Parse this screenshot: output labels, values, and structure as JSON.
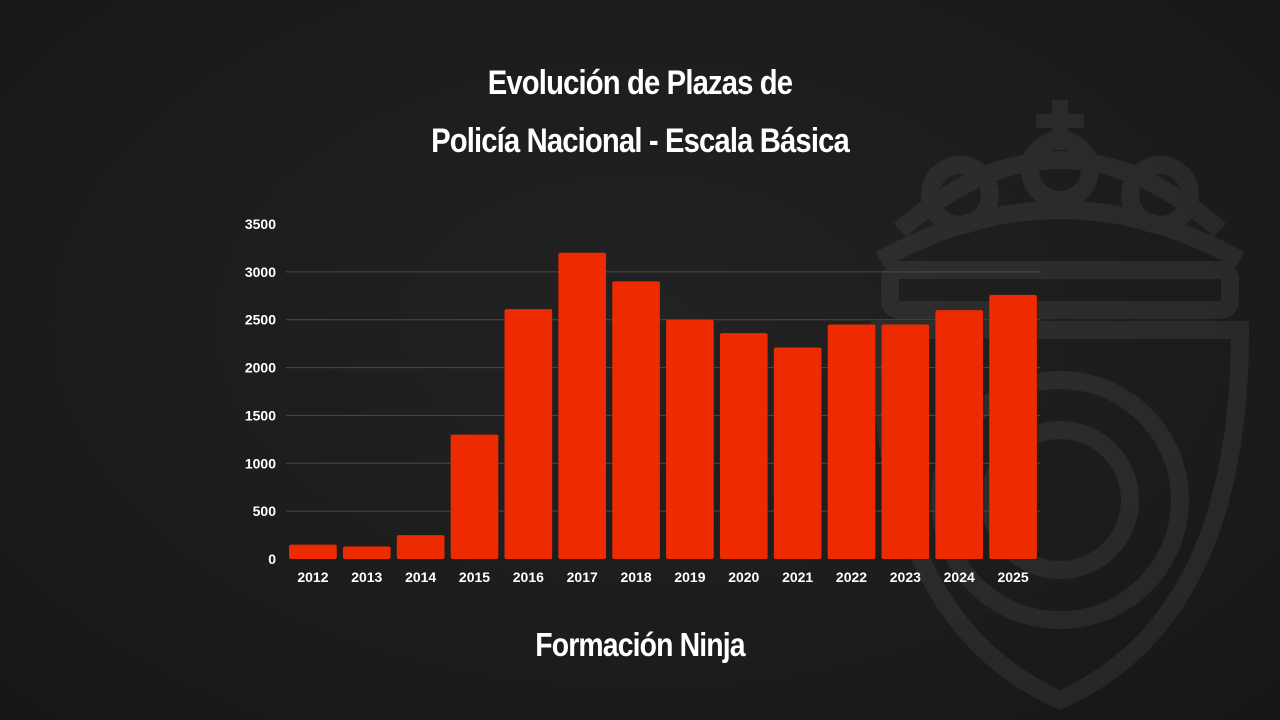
{
  "title": {
    "line1": "Evolución de Plazas de",
    "line2": "Policía Nacional - Escala Básica"
  },
  "brand": "Formación Ninja",
  "colors": {
    "background": "#1c1c1c",
    "bar": "#ee2a00",
    "text": "#ffffff",
    "grid": "#4a4a4a"
  },
  "chart_data": {
    "type": "bar",
    "title": "Evolución de Plazas de Policía Nacional - Escala Básica",
    "xlabel": "",
    "ylabel": "",
    "categories": [
      "2012",
      "2013",
      "2014",
      "2015",
      "2016",
      "2017",
      "2018",
      "2019",
      "2020",
      "2021",
      "2022",
      "2023",
      "2024",
      "2025"
    ],
    "values": [
      150,
      130,
      250,
      1300,
      2610,
      3200,
      2900,
      2500,
      2360,
      2210,
      2450,
      2450,
      2600,
      2760
    ],
    "ylim": [
      0,
      3500
    ],
    "yticks": [
      0,
      500,
      1000,
      1500,
      2000,
      2500,
      3000,
      3500
    ],
    "grid": true,
    "legend": "none"
  }
}
